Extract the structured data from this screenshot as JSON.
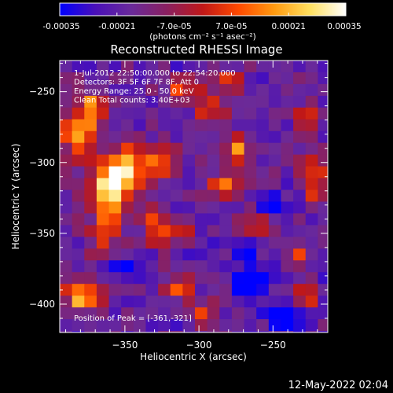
{
  "chart_data": {
    "type": "heatmap",
    "title": "Reconstructed RHESSI Image",
    "xlabel": "Heliocentric X (arcsec)",
    "ylabel": "Heliocentric Y (arcsec)",
    "xlim": [
      -394,
      -213
    ],
    "ylim": [
      -420,
      -228
    ],
    "x_ticks": [
      -350,
      -300,
      -250
    ],
    "y_ticks": [
      -250,
      -300,
      -350,
      -400
    ],
    "colorbar": {
      "min": -0.00035,
      "max": 0.00035,
      "tick_values": [
        -0.00035,
        -0.00021,
        -7e-05,
        7e-05,
        0.00021,
        0.00035
      ],
      "tick_labels": [
        "-0.00035",
        "-0.00021",
        "-7.0e-05",
        "7.0e-05",
        "0.00021",
        "0.00035"
      ],
      "unit_label": "(photons cm⁻² s⁻¹ asec⁻²)",
      "colormap": [
        "#0000ff",
        "#4a10b8",
        "#6a2a9a",
        "#8a2060",
        "#c01818",
        "#ff4a00",
        "#ff9a10",
        "#ffe060",
        "#ffffff"
      ]
    },
    "annotations": [
      "1-Jul-2012 22:50:00.000 to 22:54:20.000",
      "Detectors: 3F 5F 6F 7F 8F, Att 0",
      "Energy Range: 25.0 - 50.0 keV",
      "Clean     Total counts: 3.40E+03"
    ],
    "peak_label": "Position of Peak = [-361,-321]",
    "peak": [
      -361,
      -321
    ],
    "sources": [
      {
        "x": -361,
        "y": -321,
        "amp": 1.0,
        "sx": 10,
        "sy": 14
      },
      {
        "x": -347,
        "y": -303,
        "amp": 0.75,
        "sx": 9,
        "sy": 9
      },
      {
        "x": -380,
        "y": -282,
        "amp": 0.65,
        "sx": 9,
        "sy": 14
      },
      {
        "x": -370,
        "y": -260,
        "amp": 0.55,
        "sx": 8,
        "sy": 8
      },
      {
        "x": -323,
        "y": -300,
        "amp": 0.55,
        "sx": 8,
        "sy": 8
      },
      {
        "x": -310,
        "y": -250,
        "amp": 0.5,
        "sx": 9,
        "sy": 6
      },
      {
        "x": -280,
        "y": -245,
        "amp": 0.4,
        "sx": 8,
        "sy": 6
      },
      {
        "x": -290,
        "y": -263,
        "amp": 0.5,
        "sx": 8,
        "sy": 6
      },
      {
        "x": -275,
        "y": -290,
        "amp": 0.55,
        "sx": 7,
        "sy": 9
      },
      {
        "x": -283,
        "y": -315,
        "amp": 0.5,
        "sx": 7,
        "sy": 7
      },
      {
        "x": -258,
        "y": -345,
        "amp": 0.45,
        "sx": 9,
        "sy": 6
      },
      {
        "x": -222,
        "y": -310,
        "amp": 0.55,
        "sx": 6,
        "sy": 14
      },
      {
        "x": -228,
        "y": -270,
        "amp": 0.5,
        "sx": 6,
        "sy": 8
      },
      {
        "x": -328,
        "y": -345,
        "amp": 0.55,
        "sx": 6,
        "sy": 9
      },
      {
        "x": -310,
        "y": -348,
        "amp": 0.45,
        "sx": 5,
        "sy": 6
      },
      {
        "x": -365,
        "y": -355,
        "amp": 0.45,
        "sx": 7,
        "sy": 7
      },
      {
        "x": -378,
        "y": -395,
        "amp": 0.7,
        "sx": 10,
        "sy": 8
      },
      {
        "x": -315,
        "y": -388,
        "amp": 0.5,
        "sx": 8,
        "sy": 7
      },
      {
        "x": -295,
        "y": -405,
        "amp": 0.45,
        "sx": 7,
        "sy": 6
      },
      {
        "x": -233,
        "y": -368,
        "amp": 0.55,
        "sx": 5,
        "sy": 5
      },
      {
        "x": -228,
        "y": -395,
        "amp": 0.4,
        "sx": 6,
        "sy": 6
      },
      {
        "x": -265,
        "y": -385,
        "amp": -0.55,
        "sx": 8,
        "sy": 7
      },
      {
        "x": -242,
        "y": -410,
        "amp": -0.6,
        "sx": 8,
        "sy": 6
      },
      {
        "x": -268,
        "y": -360,
        "amp": -0.45,
        "sx": 6,
        "sy": 6
      },
      {
        "x": -248,
        "y": -330,
        "amp": -0.35,
        "sx": 6,
        "sy": 6
      },
      {
        "x": -350,
        "y": -375,
        "amp": -0.3,
        "sx": 6,
        "sy": 6
      }
    ]
  },
  "footer": {
    "timestamp": "12-May-2022 02:04"
  }
}
